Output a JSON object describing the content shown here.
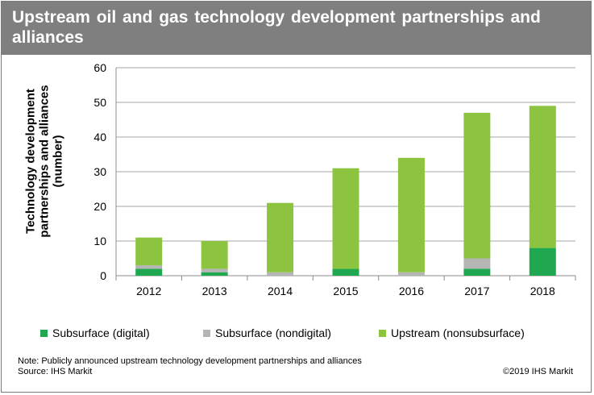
{
  "title": "Upstream oil and gas technology development partnerships and alliances",
  "note": "Note: Publicly announced upstream technology development partnerships and alliances",
  "source": "Source: IHS Markit",
  "copyright": "©2019 IHS Markit",
  "colors": {
    "header": "#7f7f7f",
    "subsurface_digital": "#1fa84f",
    "subsurface_nondigital": "#b5b5b5",
    "upstream_nonsubsurface": "#8cc43f"
  },
  "chart_data": {
    "type": "bar",
    "stacked": true,
    "title": "Upstream oil and gas technology development partnerships and alliances",
    "xlabel": "",
    "ylabel": "Technology development partnerships and alliances (number)",
    "ylim": [
      0,
      60
    ],
    "yticks": [
      0,
      10,
      20,
      30,
      40,
      50,
      60
    ],
    "grid": true,
    "legend_position": "bottom",
    "categories": [
      "2012",
      "2013",
      "2014",
      "2015",
      "2016",
      "2017",
      "2018"
    ],
    "series": [
      {
        "name": "Subsurface (digital)",
        "values": [
          2,
          1,
          0,
          2,
          0,
          2,
          8
        ]
      },
      {
        "name": "Subsurface (nondigital)",
        "values": [
          1,
          1,
          1,
          0,
          1,
          3,
          0
        ]
      },
      {
        "name": "Upstream (nonsubsurface)",
        "values": [
          8,
          8,
          20,
          29,
          33,
          42,
          41
        ]
      }
    ]
  }
}
